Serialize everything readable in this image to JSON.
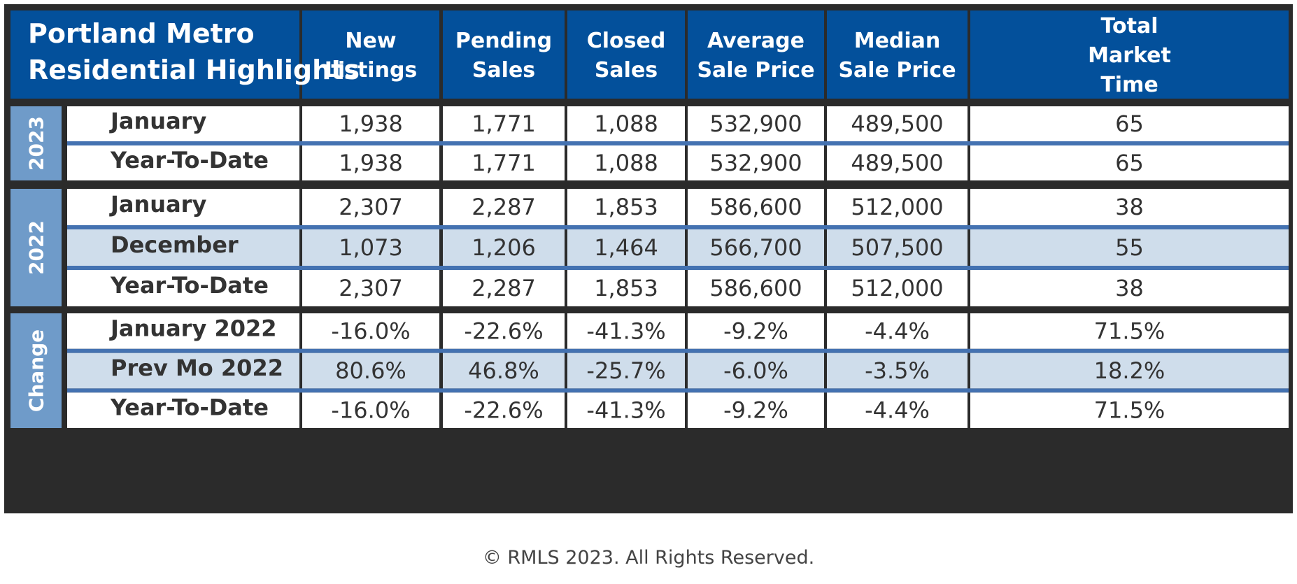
{
  "chart_data": {
    "type": "table",
    "title_lines": [
      "Portland Metro",
      "Residential Highlights"
    ],
    "columns": [
      {
        "lines": [
          "New",
          "Listings"
        ]
      },
      {
        "lines": [
          "Pending",
          "Sales"
        ]
      },
      {
        "lines": [
          "Closed",
          "Sales"
        ]
      },
      {
        "lines": [
          "Average",
          "Sale Price"
        ]
      },
      {
        "lines": [
          "Median",
          "Sale Price"
        ]
      },
      {
        "lines": [
          "Total",
          "Market",
          "Time"
        ]
      }
    ],
    "groups": [
      {
        "label": "2023",
        "rows": [
          {
            "label": "January",
            "highlight": false,
            "values": [
              "1,938",
              "1,771",
              "1,088",
              "532,900",
              "489,500",
              "65"
            ]
          },
          {
            "label": "Year-To-Date",
            "highlight": false,
            "values": [
              "1,938",
              "1,771",
              "1,088",
              "532,900",
              "489,500",
              "65"
            ]
          }
        ]
      },
      {
        "label": "2022",
        "rows": [
          {
            "label": "January",
            "highlight": false,
            "values": [
              "2,307",
              "2,287",
              "1,853",
              "586,600",
              "512,000",
              "38"
            ]
          },
          {
            "label": "December",
            "highlight": true,
            "values": [
              "1,073",
              "1,206",
              "1,464",
              "566,700",
              "507,500",
              "55"
            ]
          },
          {
            "label": "Year-To-Date",
            "highlight": false,
            "values": [
              "2,307",
              "2,287",
              "1,853",
              "586,600",
              "512,000",
              "38"
            ]
          }
        ]
      },
      {
        "label": "Change",
        "rows": [
          {
            "label": "January 2022",
            "highlight": false,
            "values": [
              "-16.0%",
              "-22.6%",
              "-41.3%",
              "-9.2%",
              "-4.4%",
              "71.5%"
            ]
          },
          {
            "label": "Prev Mo 2022",
            "highlight": true,
            "values": [
              "80.6%",
              "46.8%",
              "-25.7%",
              "-6.0%",
              "-3.5%",
              "18.2%"
            ]
          },
          {
            "label": "Year-To-Date",
            "highlight": false,
            "values": [
              "-16.0%",
              "-22.6%",
              "-41.3%",
              "-9.2%",
              "-4.4%",
              "71.5%"
            ]
          }
        ]
      }
    ],
    "colors": {
      "header": "#03509b",
      "group_tab": "#6f9bc9",
      "row_highlight": "#cfddeb",
      "row_divider": "#4472b1",
      "frame": "#2b2b2b"
    }
  },
  "footer": {
    "copyright": "© RMLS 2023. All Rights Reserved."
  }
}
